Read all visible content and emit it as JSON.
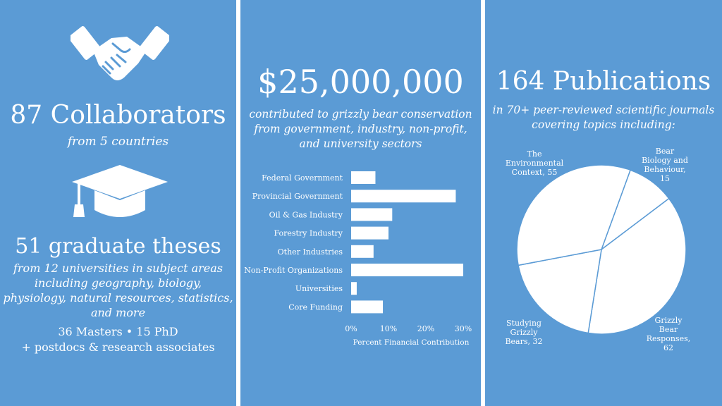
{
  "panel1": {
    "icon1": "handshake-icon",
    "collaborators_title": "87 Collaborators",
    "collaborators_sub": "from 5 countries",
    "icon2": "graduation-cap-icon",
    "theses_title": "51 graduate theses",
    "theses_desc": [
      "from 12 universities in subject areas",
      "including geography, biology,",
      "physiology, natural resources, statistics,",
      "and more"
    ],
    "degrees": "36 Masters • 15 PhD",
    "postdocs": "+ postdocs & research associates"
  },
  "panel2": {
    "amount": "$25,000,000",
    "desc": [
      "contributed to grizzly bear conservation",
      "from government, industry, non-profit,",
      "and university sectors"
    ]
  },
  "panel3": {
    "title": "164 Publications",
    "desc": [
      "in 70+ peer-reviewed scientific journals",
      "covering topics including:"
    ]
  },
  "colors": {
    "panel": "#5b9bd5",
    "mark": "#ffffff",
    "gap": "#ffffff"
  },
  "chart_data": [
    {
      "type": "bar",
      "orientation": "horizontal",
      "categories": [
        "Federal Government",
        "Provincial Government",
        "Oil & Gas Industry",
        "Forestry Industry",
        "Other Industries",
        "Non-Profit Organizations",
        "Universities",
        "Core Funding"
      ],
      "values": [
        6.5,
        28,
        11,
        10,
        6,
        30,
        1.5,
        8.5
      ],
      "xlabel": "Percent Financial Contribution",
      "xticks": [
        "0%",
        "10%",
        "20%",
        "30%"
      ],
      "xlim": [
        0,
        30
      ],
      "grid": false
    },
    {
      "type": "pie",
      "labels": [
        "The Environmental Context",
        "Bear Biology and Behaviour",
        "Grizzly Bear Responses",
        "Studying Grizzly Bears"
      ],
      "values": [
        55,
        15,
        62,
        32
      ],
      "slice_labels": [
        [
          "The",
          "Environmental",
          "Context, 55"
        ],
        [
          "Bear",
          "Biology and",
          "Behaviour,",
          "15"
        ],
        [
          "Grizzly",
          "Bear",
          "Responses,",
          "62"
        ],
        [
          "Studying",
          "Grizzly",
          "Bears, 32"
        ]
      ]
    }
  ]
}
